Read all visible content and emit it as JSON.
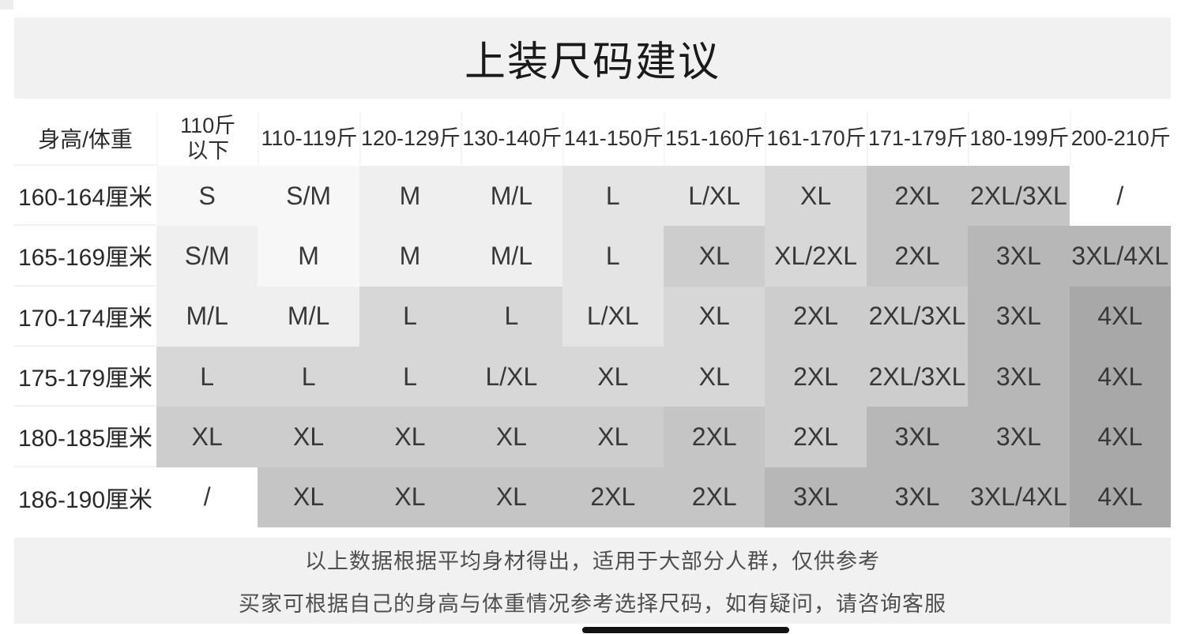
{
  "title": "上装尺码建议",
  "table": {
    "corner_label": "身高/体重",
    "weight_headers": [
      "110斤\n以下",
      "110-119斤",
      "120-129斤",
      "130-140斤",
      "141-150斤",
      "151-160斤",
      "161-170斤",
      "171-179斤",
      "180-199斤",
      "200-210斤"
    ],
    "rows": [
      {
        "height": "160-164厘米",
        "sizes": [
          "S",
          "S/M",
          "M",
          "M/L",
          "L",
          "L/XL",
          "XL",
          "2XL",
          "2XL/3XL",
          "/"
        ],
        "shades": [
          1,
          1,
          2,
          2,
          3,
          3,
          4,
          6,
          6,
          0
        ]
      },
      {
        "height": "165-169厘米",
        "sizes": [
          "S/M",
          "M",
          "M",
          "M/L",
          "L",
          "XL",
          "XL/2XL",
          "2XL",
          "3XL",
          "3XL/4XL"
        ],
        "shades": [
          2,
          1,
          2,
          2,
          3,
          5,
          4,
          6,
          7,
          7
        ]
      },
      {
        "height": "170-174厘米",
        "sizes": [
          "M/L",
          "M/L",
          "L",
          "L",
          "L/XL",
          "XL",
          "2XL",
          "2XL/3XL",
          "3XL",
          "4XL"
        ],
        "shades": [
          2,
          2,
          4,
          4,
          3,
          4,
          5,
          5,
          7,
          8
        ]
      },
      {
        "height": "175-179厘米",
        "sizes": [
          "L",
          "L",
          "L",
          "L/XL",
          "XL",
          "XL",
          "2XL",
          "2XL/3XL",
          "3XL",
          "4XL"
        ],
        "shades": [
          4,
          4,
          4,
          4,
          4,
          4,
          5,
          5,
          7,
          8
        ]
      },
      {
        "height": "180-185厘米",
        "sizes": [
          "XL",
          "XL",
          "XL",
          "XL",
          "XL",
          "2XL",
          "2XL",
          "3XL",
          "3XL",
          "4XL"
        ],
        "shades": [
          5,
          5,
          5,
          5,
          5,
          6,
          5,
          7,
          7,
          8
        ]
      },
      {
        "height": "186-190厘米",
        "sizes": [
          "/",
          "XL",
          "XL",
          "XL",
          "2XL",
          "2XL",
          "3XL",
          "3XL",
          "3XL/4XL",
          "4XL"
        ],
        "shades": [
          0,
          6,
          6,
          6,
          6,
          6,
          7,
          7,
          7,
          8
        ]
      }
    ],
    "shade_palette": [
      "#ffffff",
      "#f7f7f7",
      "#efefef",
      "#e4e4e4",
      "#d7d7d7",
      "#cdcdcd",
      "#c5c5c5",
      "#b7b7b7",
      "#a8a8a8"
    ]
  },
  "footer": {
    "line1": "以上数据根据平均身材得出，适用于大部分人群，仅供参考",
    "line2": "买家可根据自己的身高与体重情况参考选择尺码，如有疑问，请咨询客服"
  },
  "colors": {
    "band_bg": "#f1f1f1",
    "title_text": "#1a1a1a",
    "cell_text": "#383838",
    "footer_text": "#4f4f4f",
    "home_bar": "#121212"
  }
}
